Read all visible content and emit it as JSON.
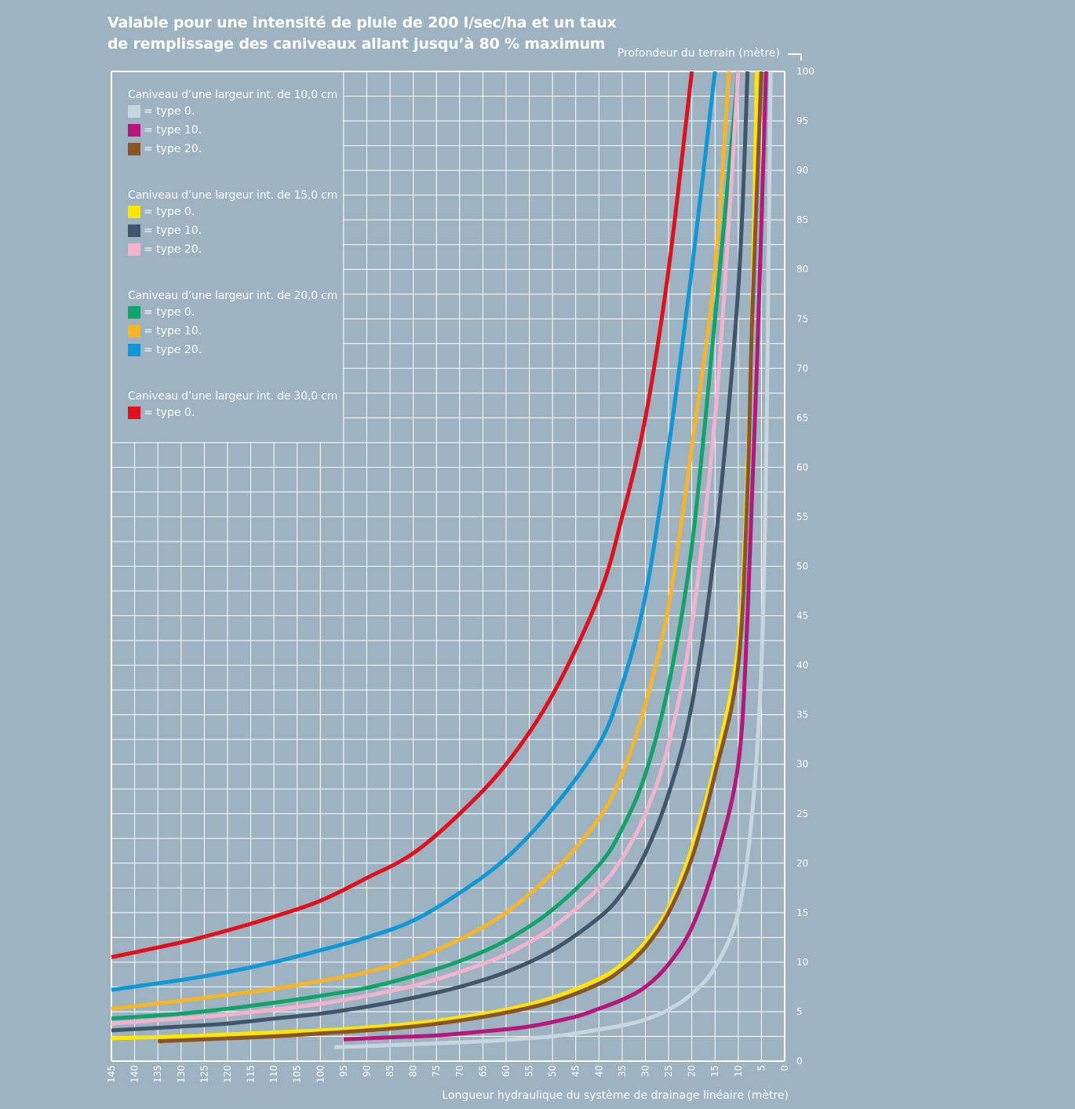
{
  "title": {
    "line1": "Valable pour une intensité de pluie de 200 l/sec/ha et un taux",
    "line2": "de remplissage des caniveaux allant jusqu’à 80 % maximum"
  },
  "legend": [
    {
      "title": "Caniveau d’une largeur int. de 10,0 cm",
      "items": [
        {
          "label": "= type 0.",
          "color": "#c8d6df"
        },
        {
          "label": "= type 10.",
          "color": "#b5177a"
        },
        {
          "label": "= type 20.",
          "color": "#8a5524"
        }
      ]
    },
    {
      "title": "Caniveau d’une largeur int. de 15,0 cm",
      "items": [
        {
          "label": "= type 0.",
          "color": "#ffe600"
        },
        {
          "label": "= type 10.",
          "color": "#41566b"
        },
        {
          "label": "= type 20.",
          "color": "#f2b3cf"
        }
      ]
    },
    {
      "title": "Caniveau d’une largeur int. de 20,0 cm",
      "items": [
        {
          "label": "= type 0.",
          "color": "#12a36b"
        },
        {
          "label": "= type 10.",
          "color": "#f6b62a"
        },
        {
          "label": "= type 20.",
          "color": "#0f97d6"
        }
      ]
    },
    {
      "title": "Caniveau d’une largeur int. de 30,0 cm",
      "items": [
        {
          "label": "= type 0.",
          "color": "#e2101c"
        }
      ]
    }
  ],
  "chart_data": {
    "type": "line",
    "x_axis_label": "Longueur hydraulique du système de drainage linéaire (mètre)",
    "y_axis_label": "Profondeur du terrain (mètre)",
    "xlim": [
      145,
      0
    ],
    "ylim": [
      0,
      100
    ],
    "x_ticks": [
      145,
      140,
      135,
      130,
      125,
      120,
      115,
      110,
      105,
      100,
      95,
      90,
      85,
      80,
      75,
      70,
      65,
      60,
      55,
      50,
      45,
      40,
      35,
      30,
      25,
      20,
      15,
      10,
      5,
      0
    ],
    "y_ticks": [
      0,
      5,
      10,
      15,
      20,
      25,
      30,
      35,
      40,
      45,
      50,
      55,
      60,
      65,
      70,
      75,
      80,
      85,
      90,
      95,
      100
    ],
    "grid": true,
    "legend_position": "top-left",
    "series": [
      {
        "name": "Caniveau d’une largeur int. de 30,0 cm = type 0.",
        "color": "#e2101c",
        "points": [
          [
            145,
            10.5
          ],
          [
            130,
            12
          ],
          [
            120,
            13.2
          ],
          [
            110,
            14.6
          ],
          [
            100,
            16.2
          ],
          [
            90,
            18.5
          ],
          [
            80,
            21
          ],
          [
            70,
            25
          ],
          [
            60,
            30
          ],
          [
            50,
            37
          ],
          [
            40,
            47
          ],
          [
            35,
            55
          ],
          [
            30,
            65
          ],
          [
            25,
            80
          ],
          [
            20,
            100
          ]
        ]
      },
      {
        "name": "Caniveau d’une largeur int. de 20,0 cm = type 20.",
        "color": "#0f97d6",
        "points": [
          [
            145,
            7.2
          ],
          [
            130,
            8.2
          ],
          [
            120,
            9
          ],
          [
            110,
            10
          ],
          [
            100,
            11.2
          ],
          [
            90,
            12.5
          ],
          [
            80,
            14.2
          ],
          [
            70,
            17
          ],
          [
            60,
            20.5
          ],
          [
            50,
            25.5
          ],
          [
            40,
            32
          ],
          [
            35,
            38
          ],
          [
            30,
            47
          ],
          [
            25,
            62
          ],
          [
            20,
            80
          ],
          [
            15,
            100
          ]
        ]
      },
      {
        "name": "Caniveau d’une largeur int. de 20,0 cm = type 10.",
        "color": "#f6b62a",
        "points": [
          [
            145,
            5.3
          ],
          [
            130,
            6.1
          ],
          [
            120,
            6.7
          ],
          [
            110,
            7.3
          ],
          [
            100,
            8.1
          ],
          [
            90,
            9
          ],
          [
            80,
            10.3
          ],
          [
            70,
            12.3
          ],
          [
            60,
            15
          ],
          [
            50,
            19
          ],
          [
            40,
            24.5
          ],
          [
            35,
            29
          ],
          [
            30,
            36
          ],
          [
            25,
            46
          ],
          [
            20,
            62
          ],
          [
            15,
            80
          ],
          [
            12,
            100
          ]
        ]
      },
      {
        "name": "Caniveau d’une largeur int. de 20,0 cm = type 0.",
        "color": "#12a36b",
        "points": [
          [
            145,
            4.3
          ],
          [
            130,
            4.8
          ],
          [
            120,
            5.3
          ],
          [
            110,
            5.9
          ],
          [
            100,
            6.6
          ],
          [
            90,
            7.4
          ],
          [
            80,
            8.6
          ],
          [
            70,
            10.1
          ],
          [
            60,
            12.2
          ],
          [
            50,
            15.3
          ],
          [
            40,
            19.8
          ],
          [
            35,
            23.5
          ],
          [
            30,
            29
          ],
          [
            25,
            38
          ],
          [
            20,
            52
          ],
          [
            15,
            75
          ],
          [
            10,
            100
          ]
        ]
      },
      {
        "name": "Caniveau d’une largeur int. de 15,0 cm = type 20.",
        "color": "#f2b3cf",
        "points": [
          [
            145,
            3.8
          ],
          [
            130,
            4.3
          ],
          [
            120,
            4.7
          ],
          [
            110,
            5.2
          ],
          [
            100,
            5.8
          ],
          [
            90,
            6.6
          ],
          [
            80,
            7.6
          ],
          [
            70,
            9
          ],
          [
            60,
            10.8
          ],
          [
            50,
            13.5
          ],
          [
            40,
            17.5
          ],
          [
            35,
            20.5
          ],
          [
            30,
            25
          ],
          [
            25,
            32
          ],
          [
            20,
            44
          ],
          [
            15,
            65
          ],
          [
            12,
            85
          ],
          [
            10,
            100
          ]
        ]
      },
      {
        "name": "Caniveau d’une largeur int. de 15,0 cm = type 10.",
        "color": "#41566b",
        "points": [
          [
            145,
            3.1
          ],
          [
            130,
            3.5
          ],
          [
            120,
            3.8
          ],
          [
            110,
            4.3
          ],
          [
            100,
            4.8
          ],
          [
            90,
            5.5
          ],
          [
            80,
            6.4
          ],
          [
            70,
            7.5
          ],
          [
            60,
            9
          ],
          [
            50,
            11.2
          ],
          [
            40,
            14.5
          ],
          [
            35,
            17
          ],
          [
            30,
            21
          ],
          [
            25,
            27
          ],
          [
            20,
            36
          ],
          [
            15,
            52
          ],
          [
            10,
            78
          ],
          [
            8,
            100
          ]
        ]
      },
      {
        "name": "Caniveau d’une largeur int. de 15,0 cm = type 0.",
        "color": "#ffe600",
        "points": [
          [
            145,
            2.3
          ],
          [
            130,
            2.5
          ],
          [
            120,
            2.7
          ],
          [
            110,
            2.9
          ],
          [
            100,
            3.1
          ],
          [
            90,
            3.4
          ],
          [
            80,
            3.8
          ],
          [
            70,
            4.4
          ],
          [
            60,
            5.2
          ],
          [
            50,
            6.4
          ],
          [
            40,
            8.3
          ],
          [
            35,
            9.8
          ],
          [
            30,
            12
          ],
          [
            25,
            15.5
          ],
          [
            20,
            21.5
          ],
          [
            15,
            30
          ],
          [
            10,
            42
          ],
          [
            8,
            60
          ],
          [
            7,
            75
          ],
          [
            6,
            100
          ]
        ]
      },
      {
        "name": "Caniveau d’une largeur int. de 10,0 cm = type 20.",
        "color": "#8a5524",
        "points": [
          [
            135,
            2
          ],
          [
            120,
            2.3
          ],
          [
            110,
            2.5
          ],
          [
            100,
            2.8
          ],
          [
            90,
            3.1
          ],
          [
            80,
            3.5
          ],
          [
            70,
            4.1
          ],
          [
            60,
            4.9
          ],
          [
            50,
            6
          ],
          [
            40,
            7.8
          ],
          [
            35,
            9.3
          ],
          [
            30,
            11.5
          ],
          [
            25,
            15
          ],
          [
            20,
            20.5
          ],
          [
            15,
            29
          ],
          [
            10,
            40
          ],
          [
            8,
            58
          ],
          [
            7,
            75
          ],
          [
            5,
            100
          ]
        ]
      },
      {
        "name": "Caniveau d’une largeur int. de 10,0 cm = type 10.",
        "color": "#b5177a",
        "points": [
          [
            95,
            2.2
          ],
          [
            85,
            2.4
          ],
          [
            75,
            2.6
          ],
          [
            65,
            3
          ],
          [
            55,
            3.5
          ],
          [
            45,
            4.5
          ],
          [
            40,
            5.3
          ],
          [
            35,
            6.2
          ],
          [
            30,
            7.5
          ],
          [
            25,
            9.8
          ],
          [
            20,
            13.5
          ],
          [
            15,
            20
          ],
          [
            10,
            30
          ],
          [
            8,
            45
          ],
          [
            6,
            70
          ],
          [
            4,
            100
          ]
        ]
      },
      {
        "name": "Caniveau d’une largeur int. de 10,0 cm = type 0.",
        "color": "#c8d6df",
        "points": [
          [
            97,
            1.4
          ],
          [
            85,
            1.6
          ],
          [
            75,
            1.8
          ],
          [
            65,
            2
          ],
          [
            55,
            2.3
          ],
          [
            50,
            2.5
          ],
          [
            45,
            2.8
          ],
          [
            40,
            3.2
          ],
          [
            35,
            3.6
          ],
          [
            30,
            4.2
          ],
          [
            25,
            5.2
          ],
          [
            20,
            6.8
          ],
          [
            15,
            9.5
          ],
          [
            10,
            15
          ],
          [
            7,
            25
          ],
          [
            5,
            40
          ],
          [
            4,
            60
          ],
          [
            3.5,
            80
          ],
          [
            3,
            100
          ]
        ]
      }
    ]
  }
}
